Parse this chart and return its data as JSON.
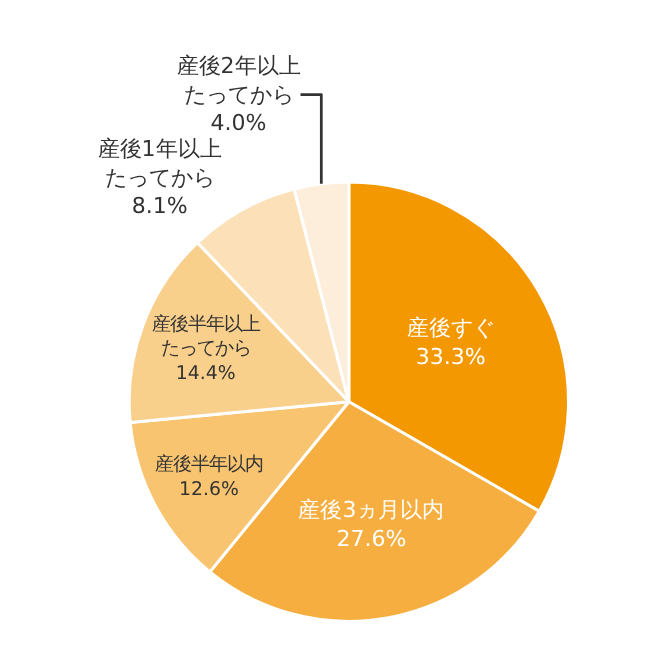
{
  "chart_data": {
    "type": "pie",
    "categories": [
      "産後すぐ",
      "産後3ヵ月以内",
      "産後半年以内",
      "産後半年以上たってから",
      "産後1年以上たってから",
      "産後2年以上たってから"
    ],
    "values": [
      33.3,
      27.6,
      12.6,
      14.4,
      8.1,
      4.0
    ],
    "value_labels": [
      "33.3%",
      "27.6%",
      "12.6%",
      "14.4%",
      "8.1%",
      "4.0%"
    ],
    "colors": [
      "#f39800",
      "#f5ae3f",
      "#f8c470",
      "#f9cf8c",
      "#fbe0b8",
      "#fdeedb"
    ],
    "legend": false
  }
}
